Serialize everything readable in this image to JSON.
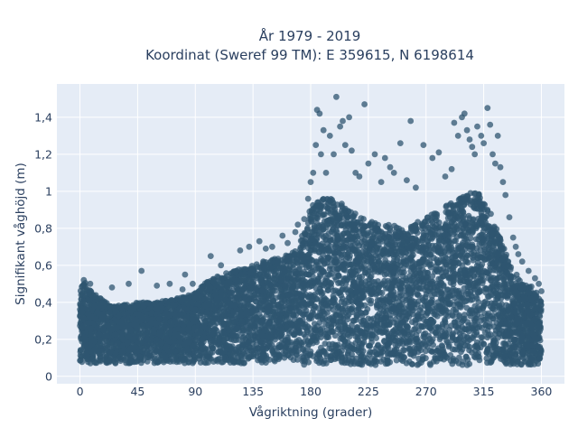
{
  "chart_data": {
    "type": "scatter",
    "title": [
      "År 1979 - 2019",
      "Koordinat (Sweref 99 TM): E 359615, N 6198614"
    ],
    "xlabel": "Vågriktning (grader)",
    "ylabel": "Signifikant våghöjd (m)",
    "xlim": [
      -18,
      378
    ],
    "ylim": [
      -0.04,
      1.58
    ],
    "xticks": [
      0,
      45,
      90,
      135,
      180,
      225,
      270,
      315,
      360
    ],
    "yticks": [
      0,
      0.2,
      0.4,
      0.6,
      0.8,
      1,
      1.2,
      1.4
    ],
    "ytick_labels": [
      "0",
      "0,2",
      "0,4",
      "0,6",
      "0,8",
      "1",
      "1,2",
      "1,4"
    ],
    "grid": true,
    "legend": "none",
    "series": [
      {
        "color": "#2f5670",
        "envelope": {
          "x": [
            0,
            3,
            10,
            25,
            45,
            60,
            75,
            90,
            100,
            115,
            135,
            150,
            165,
            170,
            175,
            180,
            190,
            200,
            215,
            225,
            240,
            255,
            265,
            280,
            295,
            305,
            315,
            325,
            335,
            345,
            355,
            360
          ],
          "y_min": [
            0.07,
            0.06,
            0.07,
            0.07,
            0.07,
            0.07,
            0.07,
            0.07,
            0.07,
            0.07,
            0.07,
            0.07,
            0.07,
            0.07,
            0.06,
            0.06,
            0.06,
            0.06,
            0.06,
            0.06,
            0.06,
            0.06,
            0.06,
            0.06,
            0.06,
            0.06,
            0.06,
            0.06,
            0.06,
            0.06,
            0.06,
            0.07
          ],
          "y_max": [
            0.46,
            0.52,
            0.45,
            0.38,
            0.4,
            0.4,
            0.42,
            0.45,
            0.52,
            0.56,
            0.6,
            0.64,
            0.66,
            0.72,
            0.78,
            0.92,
            0.96,
            0.96,
            0.88,
            0.84,
            0.82,
            0.8,
            0.84,
            0.9,
            0.96,
            1.0,
            0.98,
            0.8,
            0.62,
            0.5,
            0.48,
            0.4
          ]
        },
        "points": [
          [
            3,
            0.52
          ],
          [
            8,
            0.5
          ],
          [
            25,
            0.48
          ],
          [
            38,
            0.5
          ],
          [
            48,
            0.57
          ],
          [
            60,
            0.49
          ],
          [
            70,
            0.5
          ],
          [
            80,
            0.47
          ],
          [
            82,
            0.55
          ],
          [
            88,
            0.5
          ],
          [
            102,
            0.65
          ],
          [
            110,
            0.6
          ],
          [
            125,
            0.68
          ],
          [
            132,
            0.7
          ],
          [
            140,
            0.73
          ],
          [
            145,
            0.69
          ],
          [
            150,
            0.7
          ],
          [
            158,
            0.76
          ],
          [
            162,
            0.72
          ],
          [
            168,
            0.78
          ],
          [
            170,
            0.82
          ],
          [
            175,
            0.85
          ],
          [
            178,
            0.96
          ],
          [
            180,
            1.05
          ],
          [
            182,
            1.1
          ],
          [
            184,
            1.25
          ],
          [
            185,
            1.44
          ],
          [
            187,
            1.42
          ],
          [
            188,
            1.2
          ],
          [
            190,
            1.33
          ],
          [
            192,
            1.1
          ],
          [
            195,
            1.3
          ],
          [
            198,
            1.2
          ],
          [
            200,
            1.51
          ],
          [
            203,
            1.35
          ],
          [
            205,
            1.38
          ],
          [
            207,
            1.25
          ],
          [
            210,
            1.4
          ],
          [
            212,
            1.22
          ],
          [
            215,
            1.1
          ],
          [
            218,
            1.08
          ],
          [
            222,
            1.47
          ],
          [
            225,
            1.15
          ],
          [
            230,
            1.2
          ],
          [
            235,
            1.05
          ],
          [
            238,
            1.18
          ],
          [
            242,
            1.13
          ],
          [
            245,
            1.1
          ],
          [
            250,
            1.26
          ],
          [
            255,
            1.06
          ],
          [
            258,
            1.38
          ],
          [
            262,
            1.02
          ],
          [
            268,
            1.25
          ],
          [
            275,
            1.18
          ],
          [
            280,
            1.21
          ],
          [
            285,
            1.08
          ],
          [
            290,
            1.12
          ],
          [
            292,
            1.37
          ],
          [
            295,
            1.3
          ],
          [
            298,
            1.4
          ],
          [
            300,
            1.42
          ],
          [
            302,
            1.33
          ],
          [
            304,
            1.28
          ],
          [
            306,
            1.24
          ],
          [
            308,
            1.2
          ],
          [
            310,
            1.35
          ],
          [
            313,
            1.3
          ],
          [
            315,
            1.26
          ],
          [
            318,
            1.45
          ],
          [
            320,
            1.36
          ],
          [
            322,
            1.2
          ],
          [
            324,
            1.15
          ],
          [
            326,
            1.3
          ],
          [
            328,
            1.13
          ],
          [
            330,
            1.05
          ],
          [
            332,
            0.98
          ],
          [
            335,
            0.86
          ],
          [
            338,
            0.75
          ],
          [
            340,
            0.7
          ],
          [
            342,
            0.66
          ],
          [
            345,
            0.62
          ],
          [
            350,
            0.57
          ],
          [
            355,
            0.53
          ],
          [
            358,
            0.5
          ],
          [
            360,
            0.46
          ]
        ]
      }
    ]
  }
}
